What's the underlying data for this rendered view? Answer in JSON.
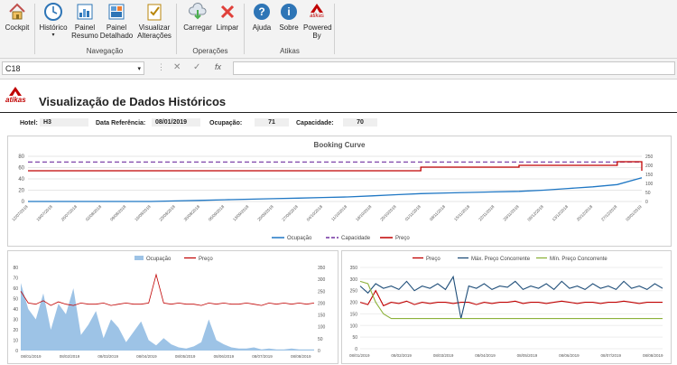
{
  "ribbon": {
    "groups": [
      {
        "label": "Navegação"
      },
      {
        "label": "Operações"
      },
      {
        "label": "Atikas"
      }
    ],
    "buttons": {
      "cockpit": "Cockpit",
      "historico": "Histórico",
      "painel_resumo": "Painel Resumo",
      "painel_detalhado": "Painel Detalhado",
      "visualizar": "Visualizar Alterações",
      "carregar": "Carregar",
      "limpar": "Limpar",
      "ajuda": "Ajuda",
      "sobre": "Sobre",
      "powered": "Powered By",
      "powered_logo": "atikas"
    }
  },
  "formula_bar": {
    "cell": "C18",
    "fx": "fx",
    "value": ""
  },
  "sheet": {
    "logo_text": "atikas",
    "title": "Visualização de Dados Históricos",
    "info": {
      "hotel_label": "Hotel:",
      "hotel_value": "H3",
      "date_label": "Data Referência:",
      "date_value": "08/01/2019",
      "occ_label": "Ocupação:",
      "occ_value": "71",
      "cap_label": "Capacidade:",
      "cap_value": "70"
    }
  },
  "colors": {
    "ocupacao": "#1f77c4",
    "capacidade": "#7030a0",
    "preco": "#c00000",
    "ocup_area": "#9dc3e6",
    "max_conc": "#1f4e79",
    "min_conc": "#8db23b"
  },
  "chart_data": [
    {
      "type": "line",
      "title": "Booking Curve",
      "x": [
        "12/07/2018",
        "19/07/2018",
        "26/07/2018",
        "02/08/2018",
        "09/08/2018",
        "16/08/2018",
        "23/08/2018",
        "30/08/2018",
        "06/09/2018",
        "13/09/2018",
        "20/09/2018",
        "27/09/2018",
        "04/10/2018",
        "11/10/2018",
        "18/10/2018",
        "25/10/2018",
        "01/11/2018",
        "08/11/2018",
        "15/11/2018",
        "22/11/2018",
        "29/11/2018",
        "06/12/2018",
        "13/12/2018",
        "20/12/2018",
        "27/12/2018",
        "03/01/2019"
      ],
      "ylim": [
        0,
        80
      ],
      "y2lim": [
        0,
        250
      ],
      "y_ticks": [
        "0",
        "20",
        "40",
        "60",
        "80"
      ],
      "y2_ticks": [
        "0",
        "50",
        "100",
        "150",
        "200",
        "250"
      ],
      "series": [
        {
          "name": "Ocupação",
          "axis": "left",
          "values": [
            0,
            0,
            0,
            0,
            0,
            0,
            1,
            2,
            3,
            4,
            5,
            6,
            7,
            8,
            10,
            12,
            14,
            15,
            16,
            17,
            18,
            20,
            23,
            26,
            30,
            42
          ]
        },
        {
          "name": "Capacidade",
          "axis": "left",
          "values": [
            70,
            70,
            70,
            70,
            70,
            70,
            70,
            70,
            70,
            70,
            70,
            70,
            70,
            70,
            70,
            70,
            70,
            70,
            70,
            70,
            70,
            70,
            70,
            70,
            70,
            70
          ]
        },
        {
          "name": "Preço",
          "axis": "right",
          "values": [
            170,
            170,
            170,
            170,
            170,
            170,
            170,
            170,
            170,
            170,
            170,
            170,
            170,
            170,
            170,
            170,
            190,
            190,
            190,
            190,
            200,
            200,
            200,
            200,
            220,
            170
          ]
        }
      ]
    },
    {
      "type": "area",
      "x_ticks": [
        "08/01/2019",
        "08/02/2019",
        "08/03/2019",
        "08/04/2019",
        "08/05/2019",
        "08/06/2019",
        "08/07/2019",
        "08/08/2019"
      ],
      "ylim": [
        0,
        80
      ],
      "y2lim": [
        0,
        350
      ],
      "y_ticks": [
        "0",
        "10",
        "20",
        "30",
        "40",
        "50",
        "60",
        "70",
        "80"
      ],
      "y2_ticks": [
        "0",
        "50",
        "100",
        "150",
        "200",
        "250",
        "300",
        "350"
      ],
      "series": [
        {
          "name": "Ocupação",
          "axis": "left",
          "values": [
            65,
            40,
            30,
            55,
            20,
            45,
            35,
            60,
            15,
            25,
            38,
            12,
            30,
            22,
            8,
            18,
            28,
            10,
            5,
            12,
            6,
            3,
            2,
            4,
            8,
            30,
            10,
            6,
            3,
            2,
            2,
            3,
            1,
            2,
            1,
            1,
            2,
            1,
            1,
            1
          ]
        },
        {
          "name": "Preço",
          "axis": "right",
          "values": [
            250,
            200,
            195,
            210,
            190,
            205,
            195,
            190,
            200,
            195,
            195,
            200,
            190,
            195,
            200,
            195,
            195,
            200,
            320,
            200,
            195,
            200,
            195,
            195,
            190,
            200,
            195,
            200,
            195,
            195,
            200,
            195,
            190,
            200,
            195,
            200,
            195,
            200,
            195,
            200
          ]
        }
      ]
    },
    {
      "type": "line",
      "x_ticks": [
        "08/01/2019",
        "08/02/2019",
        "08/03/2019",
        "08/04/2019",
        "08/05/2019",
        "08/06/2019",
        "08/07/2019",
        "08/08/2019"
      ],
      "ylim": [
        0,
        350
      ],
      "y_ticks": [
        "0",
        "50",
        "100",
        "150",
        "200",
        "250",
        "300",
        "350"
      ],
      "series": [
        {
          "name": "Preço",
          "values": [
            200,
            190,
            250,
            185,
            200,
            195,
            205,
            190,
            200,
            195,
            200,
            200,
            195,
            200,
            200,
            190,
            200,
            195,
            200,
            200,
            205,
            195,
            200,
            200,
            195,
            200,
            205,
            200,
            195,
            200,
            200,
            195,
            200,
            200,
            205,
            200,
            195,
            200,
            200,
            200
          ]
        },
        {
          "name": "Máx. Preço Concorrente",
          "values": [
            270,
            240,
            280,
            260,
            270,
            255,
            290,
            250,
            270,
            260,
            280,
            255,
            310,
            130,
            270,
            260,
            280,
            255,
            270,
            265,
            290,
            255,
            270,
            260,
            280,
            255,
            290,
            260,
            270,
            255,
            280,
            260,
            270,
            255,
            290,
            260,
            270,
            255,
            280,
            260
          ]
        },
        {
          "name": "Mín. Preço Concorrente",
          "values": [
            290,
            280,
            200,
            150,
            130,
            130,
            130,
            130,
            130,
            130,
            130,
            130,
            130,
            130,
            130,
            130,
            130,
            130,
            130,
            130,
            130,
            130,
            130,
            130,
            130,
            130,
            130,
            130,
            130,
            130,
            130,
            130,
            130,
            130,
            130,
            130,
            130,
            130,
            130,
            130
          ]
        }
      ]
    }
  ]
}
